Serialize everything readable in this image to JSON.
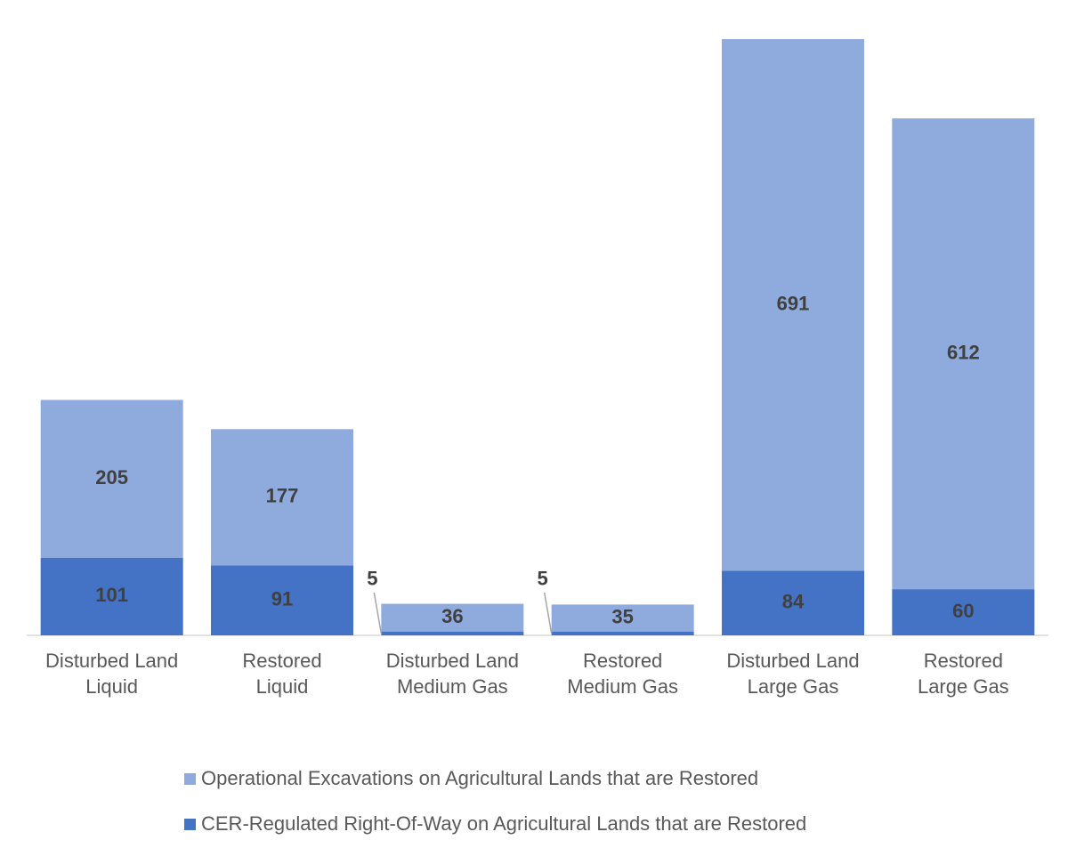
{
  "chart_data": {
    "type": "stacked_bar",
    "categories": [
      [
        "Disturbed Land",
        "Liquid"
      ],
      [
        "Restored",
        "Liquid"
      ],
      [
        "Disturbed Land",
        "Medium Gas"
      ],
      [
        "Restored",
        "Medium Gas"
      ],
      [
        "Disturbed Land",
        "Large Gas"
      ],
      [
        "Restored",
        "Large Gas"
      ]
    ],
    "series": [
      {
        "name": "Operational Excavations on Agricultural Lands that are Restored",
        "color": "#8faadc",
        "values": [
          205,
          177,
          36,
          35,
          691,
          612
        ]
      },
      {
        "name": "CER-Regulated Right-Of-Way on Agricultural Lands that are Restored",
        "color": "#4472c4",
        "values": [
          101,
          91,
          5,
          5,
          84,
          60
        ]
      }
    ]
  }
}
